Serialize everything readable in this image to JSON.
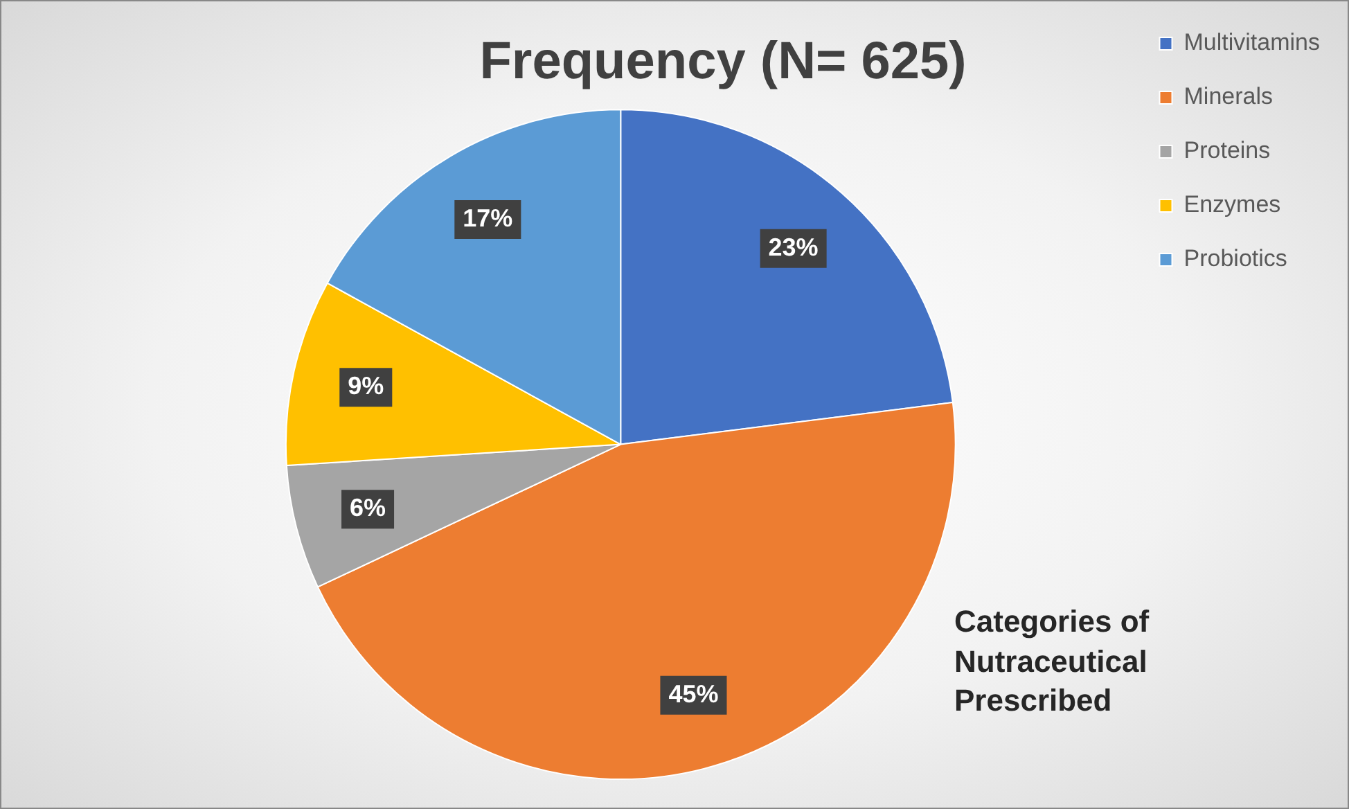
{
  "chart_data": {
    "type": "pie",
    "title": "Frequency (N= 625)",
    "categories": [
      "Multivitamins",
      "Minerals",
      "Proteins",
      "Enzymes",
      "Probiotics"
    ],
    "values": [
      23,
      45,
      6,
      9,
      17
    ],
    "colors": [
      "#4472c4",
      "#ed7d31",
      "#a5a5a5",
      "#ffc000",
      "#5b9bd5"
    ],
    "value_labels": [
      "23%",
      "45%",
      "6%",
      "9%",
      "17%"
    ],
    "legend": "top right",
    "annotations": [
      "Categories of Nutraceutical Prescribed"
    ]
  }
}
